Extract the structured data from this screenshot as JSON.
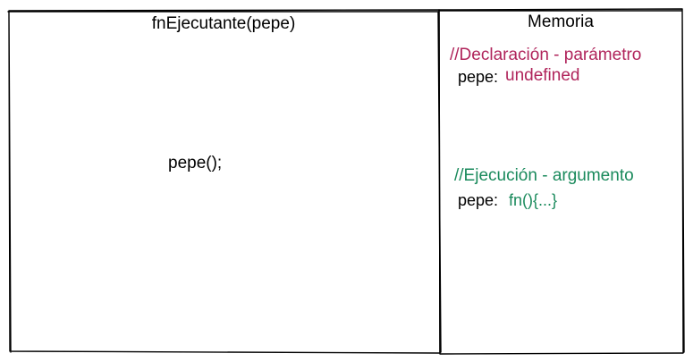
{
  "function_panel": {
    "title": "fnEjecutante(pepe)",
    "call": "pepe();"
  },
  "memory_panel": {
    "title": "Memoria",
    "declaration": {
      "comment": "//Declaración - parámetro",
      "key": "pepe:",
      "value": "undefined"
    },
    "execution": {
      "comment": "//Ejecución - argumento",
      "key": "pepe:",
      "value": "fn(){...}"
    }
  },
  "colors": {
    "declaration": "#b0245b",
    "execution": "#1a8a5c",
    "stroke": "#000000"
  }
}
